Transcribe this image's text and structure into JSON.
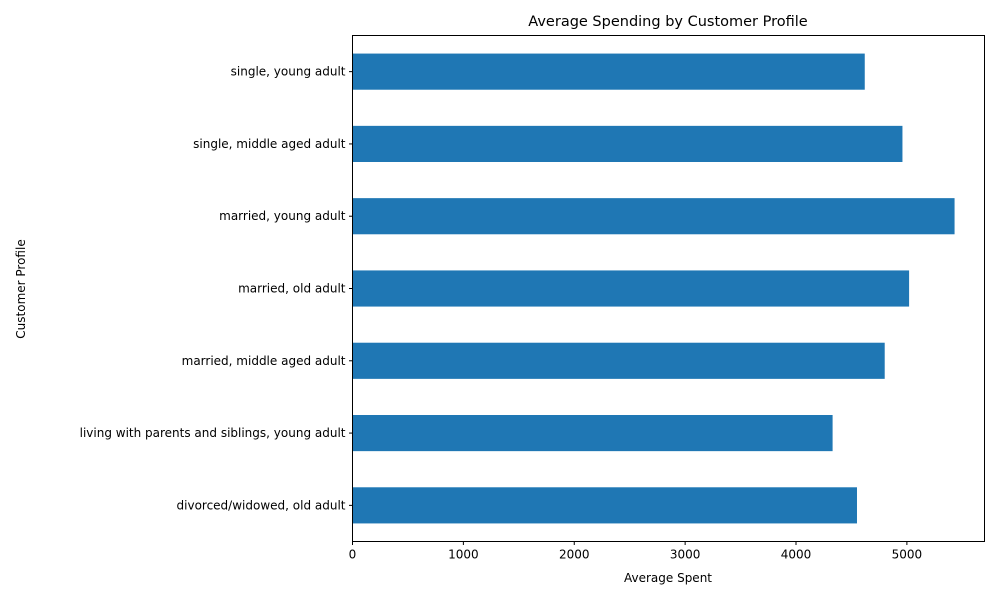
{
  "chart_data": {
    "type": "bar",
    "orientation": "horizontal",
    "title": "Average Spending by Customer Profile",
    "xlabel": "Average Spent",
    "ylabel": "Customer Profile",
    "categories": [
      "divorced/widowed, old adult",
      "living with parents and siblings, young adult",
      "married, middle aged adult",
      "married, old adult",
      "married, young adult",
      "single, middle aged adult",
      "single, young adult"
    ],
    "values": [
      4550,
      4330,
      4800,
      5020,
      5430,
      4960,
      4620
    ],
    "xlim": [
      0,
      5700
    ],
    "xticks": [
      0,
      1000,
      2000,
      3000,
      4000,
      5000
    ],
    "grid": false,
    "legend": "none",
    "bar_color": "#1f77b4"
  }
}
